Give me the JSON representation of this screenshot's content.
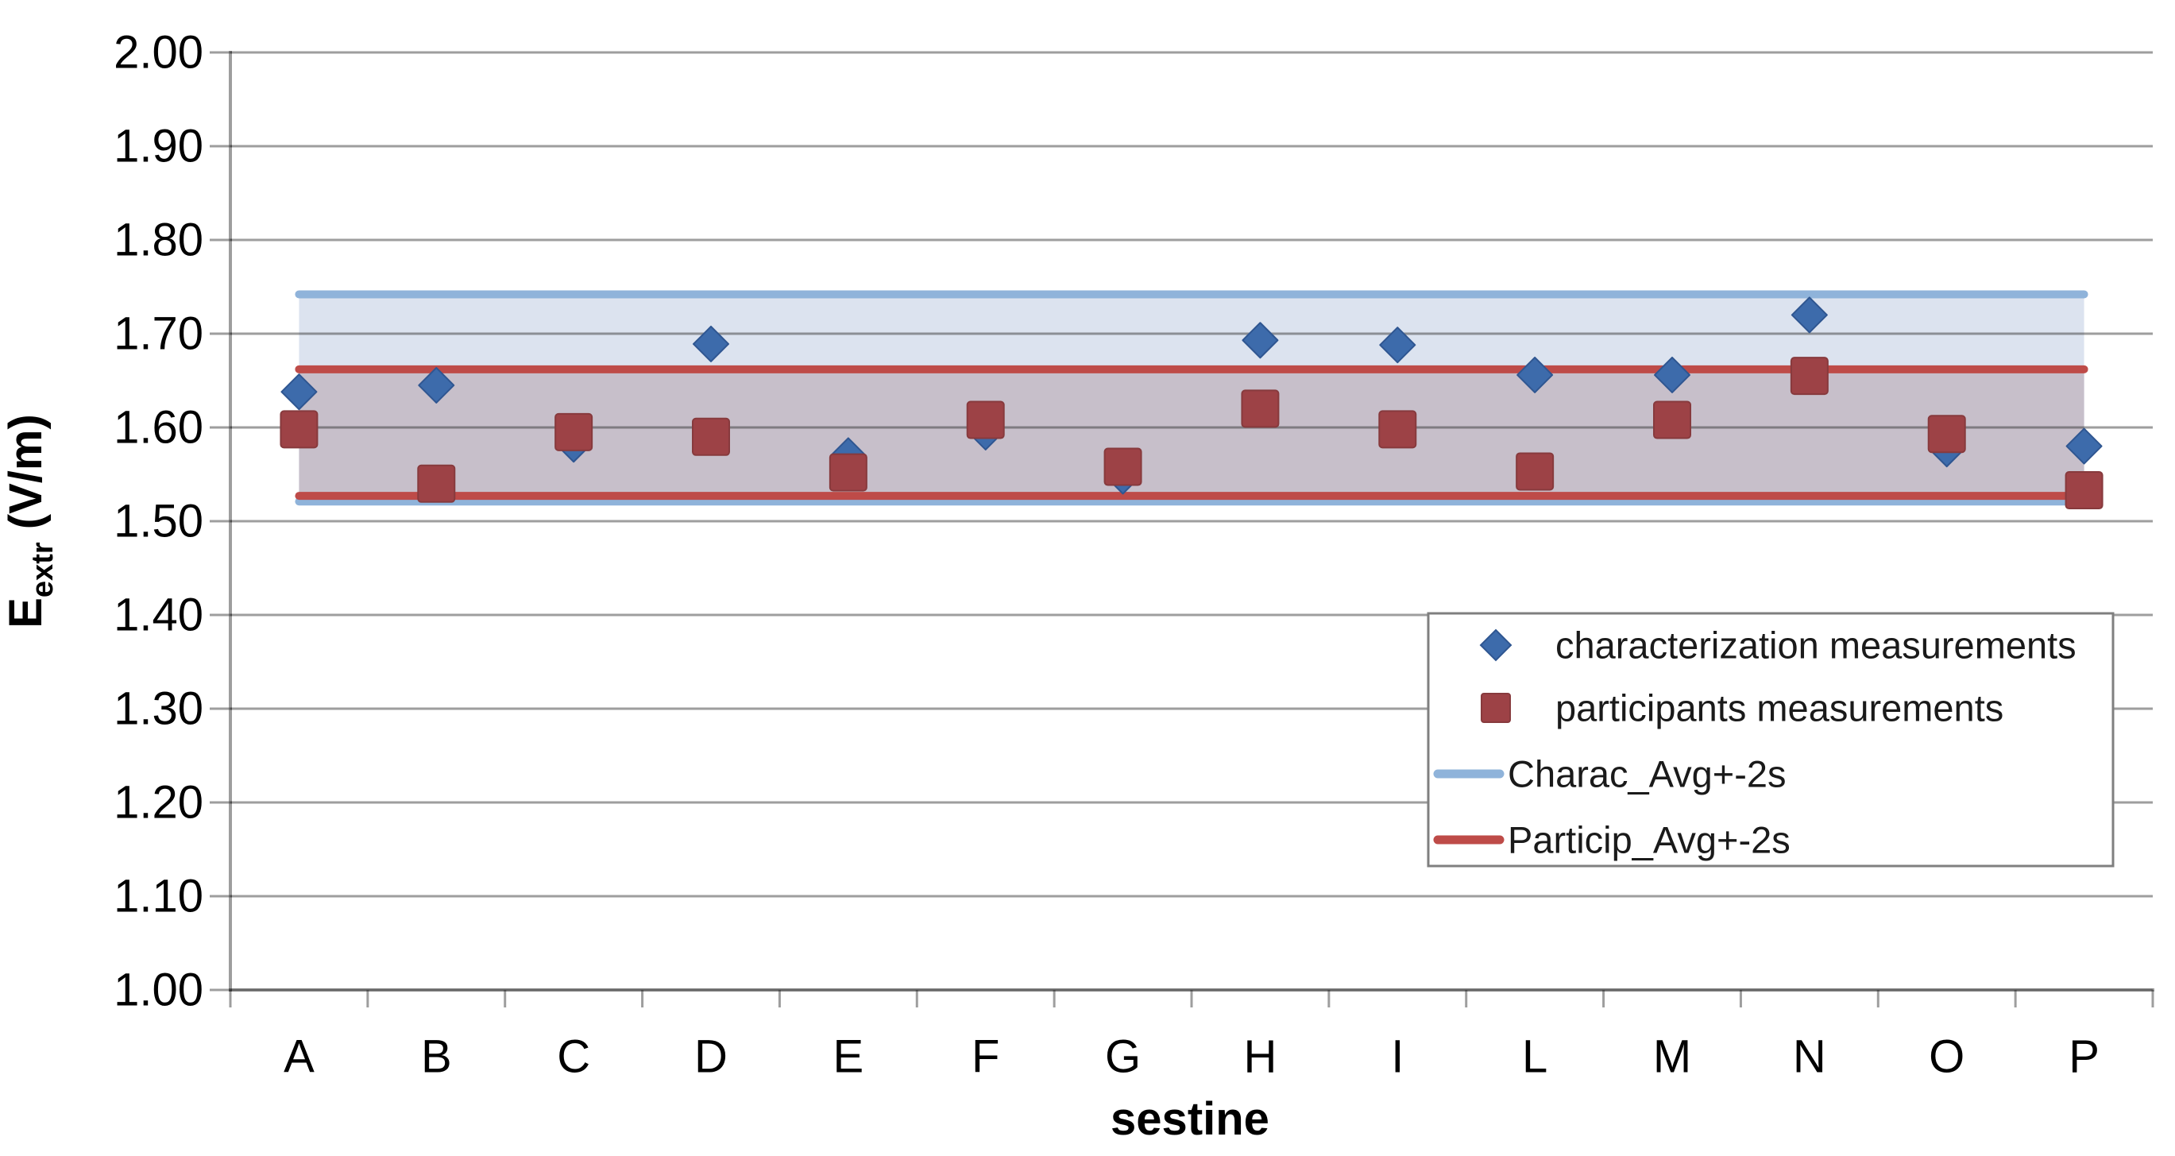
{
  "chart_data": {
    "type": "scatter",
    "title": "",
    "xlabel": "sestine",
    "ylabel": "E_extr (V/m)",
    "categories": [
      "A",
      "B",
      "C",
      "D",
      "E",
      "F",
      "G",
      "H",
      "I",
      "L",
      "M",
      "N",
      "O",
      "P"
    ],
    "series": [
      {
        "name": "characterization measurements",
        "marker": "diamond",
        "values": [
          1.638,
          1.645,
          1.582,
          1.689,
          1.57,
          1.595,
          1.548,
          1.693,
          1.688,
          1.656,
          1.656,
          1.72,
          1.577,
          1.58
        ]
      },
      {
        "name": "participants measurements",
        "marker": "square",
        "values": [
          1.598,
          1.54,
          1.595,
          1.59,
          1.552,
          1.608,
          1.558,
          1.62,
          1.598,
          1.553,
          1.608,
          1.655,
          1.593,
          1.533
        ]
      }
    ],
    "reference_bands": [
      {
        "name": "Charac_Avg+-2s",
        "upper": 1.742,
        "lower": 1.521
      },
      {
        "name": "Particip_Avg+-2s",
        "upper": 1.662,
        "lower": 1.527
      }
    ],
    "ylim": [
      1.0,
      2.0
    ],
    "ytick_step": 0.1,
    "ytick_labels": [
      "1.00",
      "1.10",
      "1.20",
      "1.30",
      "1.40",
      "1.50",
      "1.60",
      "1.70",
      "1.80",
      "1.90",
      "2.00"
    ],
    "grid": true,
    "legend_position": "middle-right"
  },
  "axes": {
    "y_title_main": "E",
    "y_title_sub": "extr",
    "y_title_unit": " (V/m)",
    "x_title": "sestine"
  },
  "legend": {
    "items": [
      {
        "label": "characterization measurements",
        "swatch": "diamond"
      },
      {
        "label": "participants measurements",
        "swatch": "square"
      },
      {
        "label": "Charac_Avg+-2s",
        "swatch": "line-blue"
      },
      {
        "label": "Particip_Avg+-2s",
        "swatch": "line-red"
      }
    ]
  },
  "colors": {
    "charac_marker": "#3D6BAB",
    "charac_marker_edge": "#2F5691",
    "particip_marker": "#9D4246",
    "particip_marker_edge": "#873A3D",
    "charac_line": "#8FB3DA",
    "particip_line": "#BE4B48",
    "charac_band_fill": "#DCE3EF",
    "overlap_band_fill": "#C7BFCA",
    "gridline": "rgba(40,40,40,0.45)",
    "axis_text": "#000000",
    "legend_text": "#1A1A1A",
    "legend_border": "#7F7F7F"
  }
}
